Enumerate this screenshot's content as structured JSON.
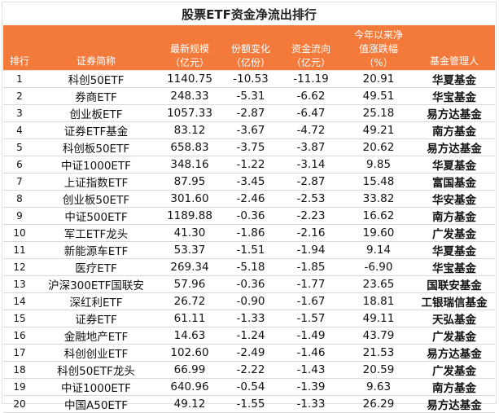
{
  "title": "股票ETF资金净流出排行",
  "headers": {
    "rank": "排行",
    "name": "证券简称",
    "size": [
      "最新规模",
      "（亿元）"
    ],
    "share": [
      "份额变化",
      "（亿份）"
    ],
    "flow": [
      "资金流向",
      "（亿元）"
    ],
    "ytd": [
      "今年以来净",
      "值涨跌幅",
      "（%）"
    ],
    "manager": "基金管理人"
  },
  "rows": [
    {
      "rank": "1",
      "name": "科创50ETF",
      "size": "1140.75",
      "share": "-10.53",
      "flow": "-11.19",
      "ytd": "20.91",
      "manager": "华夏基金"
    },
    {
      "rank": "2",
      "name": "券商ETF",
      "size": "248.33",
      "share": "-5.31",
      "flow": "-6.62",
      "ytd": "49.51",
      "manager": "华宝基金"
    },
    {
      "rank": "3",
      "name": "创业板ETF",
      "size": "1057.33",
      "share": "-2.87",
      "flow": "-6.47",
      "ytd": "25.18",
      "manager": "易方达基金"
    },
    {
      "rank": "4",
      "name": "证券ETF基金",
      "size": "83.12",
      "share": "-3.67",
      "flow": "-4.72",
      "ytd": "49.21",
      "manager": "南方基金"
    },
    {
      "rank": "5",
      "name": "科创板50ETF",
      "size": "658.83",
      "share": "-3.75",
      "flow": "-3.87",
      "ytd": "20.62",
      "manager": "易方达基金"
    },
    {
      "rank": "6",
      "name": "中证1000ETF",
      "size": "348.16",
      "share": "-1.22",
      "flow": "-3.14",
      "ytd": "9.85",
      "manager": "华夏基金"
    },
    {
      "rank": "7",
      "name": "上证指数ETF",
      "size": "87.95",
      "share": "-3.45",
      "flow": "-2.87",
      "ytd": "15.48",
      "manager": "富国基金"
    },
    {
      "rank": "8",
      "name": "创业板50ETF",
      "size": "301.60",
      "share": "-2.46",
      "flow": "-2.53",
      "ytd": "33.82",
      "manager": "华安基金"
    },
    {
      "rank": "9",
      "name": "中证500ETF",
      "size": "1189.88",
      "share": "-0.36",
      "flow": "-2.23",
      "ytd": "16.62",
      "manager": "南方基金"
    },
    {
      "rank": "10",
      "name": "军工ETF龙头",
      "size": "41.30",
      "share": "-1.86",
      "flow": "-2.16",
      "ytd": "19.60",
      "manager": "广发基金"
    },
    {
      "rank": "11",
      "name": "新能源车ETF",
      "size": "53.37",
      "share": "-1.51",
      "flow": "-1.94",
      "ytd": "9.14",
      "manager": "华夏基金"
    },
    {
      "rank": "12",
      "name": "医疗ETF",
      "size": "269.34",
      "share": "-5.18",
      "flow": "-1.85",
      "ytd": "-6.90",
      "manager": "华宝基金"
    },
    {
      "rank": "13",
      "name": "沪深300ETF国联安",
      "size": "57.96",
      "share": "-0.36",
      "flow": "-1.77",
      "ytd": "23.65",
      "manager": "国联安基金"
    },
    {
      "rank": "14",
      "name": "深红利ETF",
      "size": "26.72",
      "share": "-0.90",
      "flow": "-1.67",
      "ytd": "18.81",
      "manager": "工银瑞信基金"
    },
    {
      "rank": "15",
      "name": "证券ETF",
      "size": "61.11",
      "share": "-1.33",
      "flow": "-1.57",
      "ytd": "49.11",
      "manager": "天弘基金"
    },
    {
      "rank": "16",
      "name": "金融地产ETF",
      "size": "14.63",
      "share": "-1.24",
      "flow": "-1.49",
      "ytd": "43.79",
      "manager": "广发基金"
    },
    {
      "rank": "17",
      "name": "科创创业ETF",
      "size": "102.60",
      "share": "-2.49",
      "flow": "-1.46",
      "ytd": "21.53",
      "manager": "易方达基金"
    },
    {
      "rank": "18",
      "name": "科创50ETF龙头",
      "size": "66.99",
      "share": "-2.22",
      "flow": "-1.43",
      "ytd": "20.59",
      "manager": "广发基金"
    },
    {
      "rank": "19",
      "name": "中证1000ETF",
      "size": "640.96",
      "share": "-0.54",
      "flow": "-1.39",
      "ytd": "9.63",
      "manager": "南方基金"
    },
    {
      "rank": "20",
      "name": "中国A50ETF",
      "size": "49.12",
      "share": "-1.55",
      "flow": "-1.33",
      "ytd": "26.29",
      "manager": "易方达基金"
    }
  ]
}
